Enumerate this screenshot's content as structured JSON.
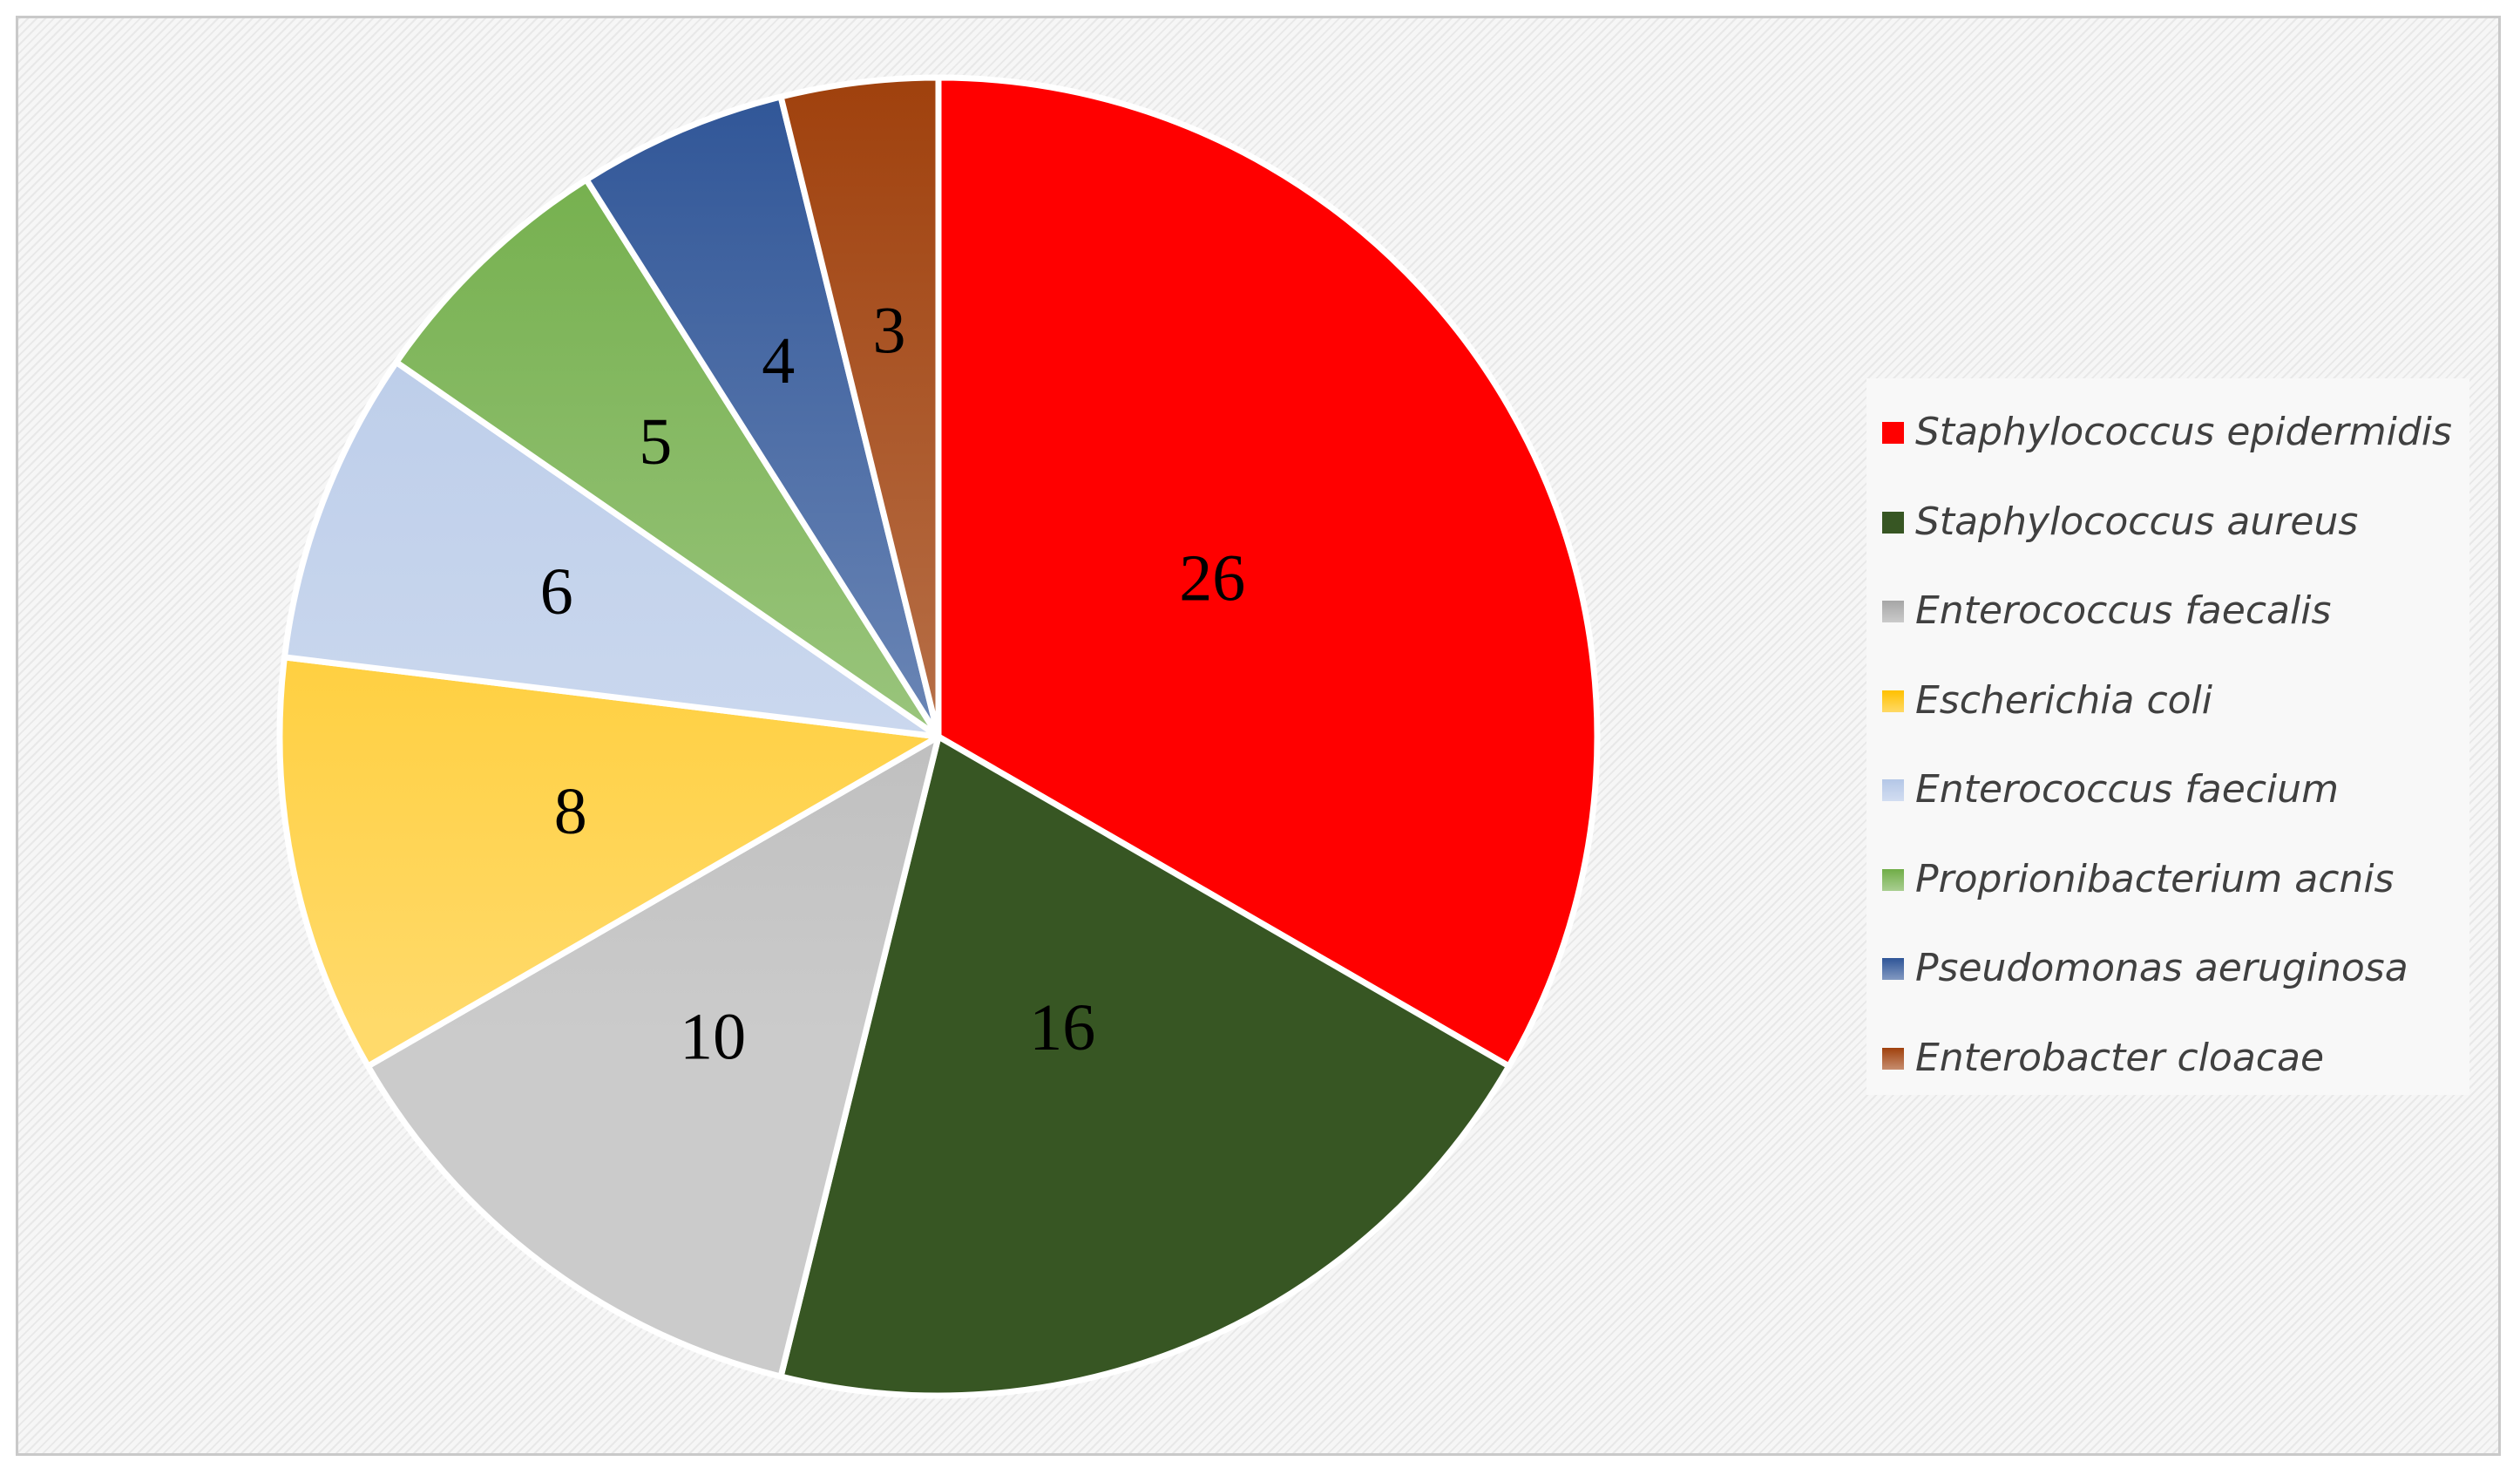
{
  "chart_data": {
    "type": "pie",
    "title": "",
    "start_angle_deg": 0,
    "direction": "clockwise",
    "legend_position": "right",
    "slices": [
      {
        "label": "Staphylococcus epidermidis",
        "value": 26,
        "color": "#ff0000"
      },
      {
        "label": "Staphylococcus aureus",
        "value": 16,
        "color": "#375623"
      },
      {
        "label": "Enterococcus faecalis",
        "value": 10,
        "color": "#a6a6a6"
      },
      {
        "label": "Escherichia coli",
        "value": 8,
        "color": "#ffc000"
      },
      {
        "label": "Enterococcus faecium",
        "value": 6,
        "color": "#b4c7e7"
      },
      {
        "label": "Proprionibacterium acnis",
        "value": 5,
        "color": "#70ad47"
      },
      {
        "label": "Pseudomonas aeruginosa",
        "value": 4,
        "color": "#2f5597"
      },
      {
        "label": "Enterobacter cloacae",
        "value": 3,
        "color": "#a0410d"
      }
    ]
  }
}
